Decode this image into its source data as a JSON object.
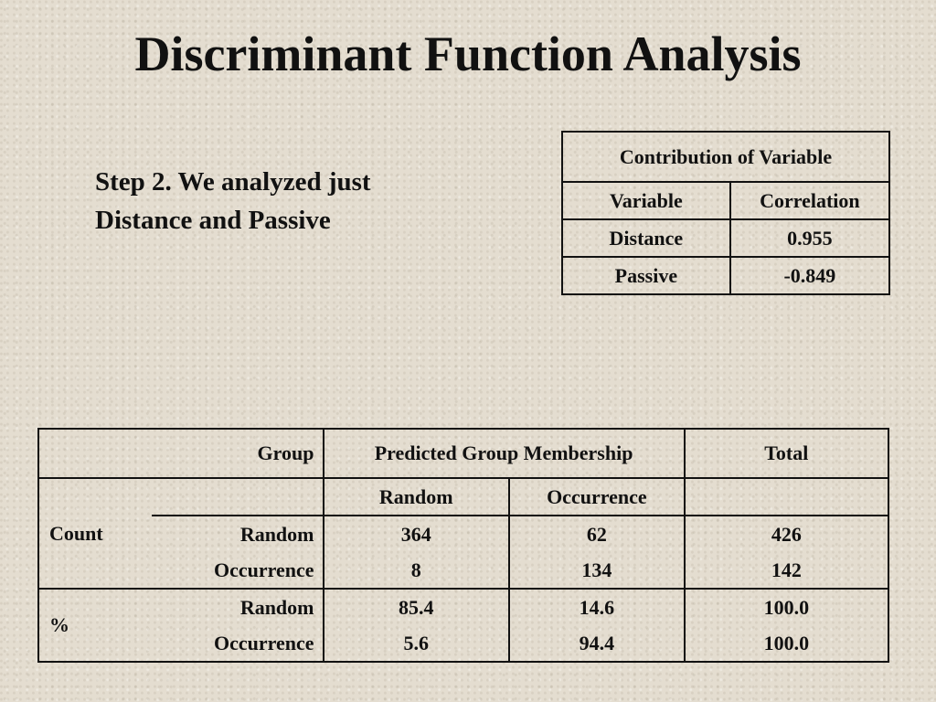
{
  "slide": {
    "title": "Discriminant Function Analysis",
    "step_line1": "Step 2.  We analyzed just",
    "step_line2": "Distance and Passive"
  },
  "contribution_table": {
    "caption": "Contribution of Variable",
    "headers": [
      "Variable",
      "Correlation"
    ],
    "rows": [
      [
        "Distance",
        "0.955"
      ],
      [
        "Passive",
        "-0.849"
      ]
    ]
  },
  "classification_table": {
    "group_label": "Group",
    "predicted_label": "Predicted Group Membership",
    "total_label": "Total",
    "sub_headers": [
      "Random",
      "Occurrence"
    ],
    "count_label": "Count",
    "percent_label": "%",
    "count_rows": [
      [
        "Random",
        "364",
        "62",
        "426"
      ],
      [
        "Occurrence",
        "8",
        "134",
        "142"
      ]
    ],
    "percent_rows": [
      [
        "Random",
        "85.4",
        "14.6",
        "100.0"
      ],
      [
        "Occurrence",
        "5.6",
        "94.4",
        "100.0"
      ]
    ]
  }
}
